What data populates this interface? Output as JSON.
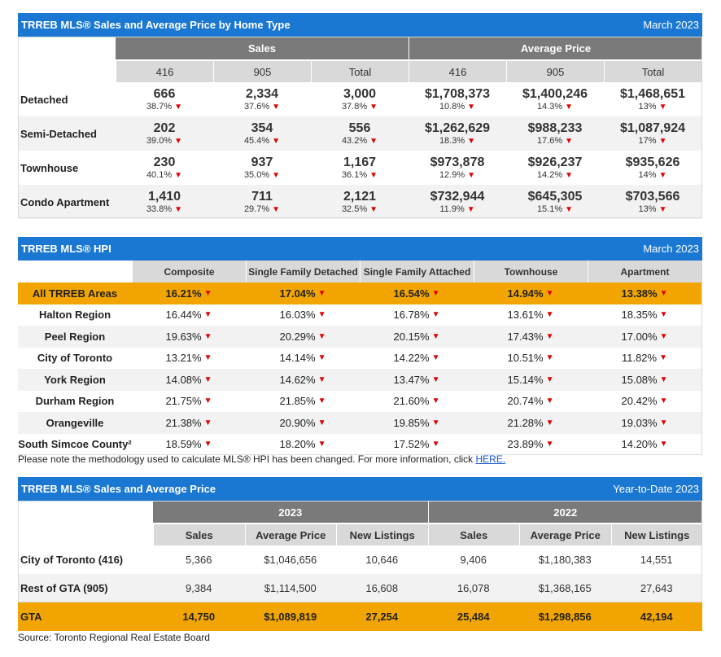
{
  "table1": {
    "title": "TRREB MLS® Sales and Average Price by Home Type",
    "date": "March 2023",
    "groups": [
      "Sales",
      "Average Price"
    ],
    "columns": [
      "416",
      "905",
      "Total",
      "416",
      "905",
      "Total"
    ],
    "rows": [
      {
        "label": "Detached",
        "cells": [
          {
            "v": "666",
            "p": "38.7%"
          },
          {
            "v": "2,334",
            "p": "37.6%"
          },
          {
            "v": "3,000",
            "p": "37.8%"
          },
          {
            "v": "$1,708,373",
            "p": "10.8%"
          },
          {
            "v": "$1,400,246",
            "p": "14.3%"
          },
          {
            "v": "$1,468,651",
            "p": "13%"
          }
        ]
      },
      {
        "label": "Semi-Detached",
        "cells": [
          {
            "v": "202",
            "p": "39.0%"
          },
          {
            "v": "354",
            "p": "45.4%"
          },
          {
            "v": "556",
            "p": "43.2%"
          },
          {
            "v": "$1,262,629",
            "p": "18.3%"
          },
          {
            "v": "$988,233",
            "p": "17.6%"
          },
          {
            "v": "$1,087,924",
            "p": "17%"
          }
        ]
      },
      {
        "label": "Townhouse",
        "cells": [
          {
            "v": "230",
            "p": "40.1%"
          },
          {
            "v": "937",
            "p": "35.0%"
          },
          {
            "v": "1,167",
            "p": "36.1%"
          },
          {
            "v": "$973,878",
            "p": "12.9%"
          },
          {
            "v": "$926,237",
            "p": "14.2%"
          },
          {
            "v": "$935,626",
            "p": "14%"
          }
        ]
      },
      {
        "label": "Condo Apartment",
        "cells": [
          {
            "v": "1,410",
            "p": "33.8%"
          },
          {
            "v": "711",
            "p": "29.7%"
          },
          {
            "v": "2,121",
            "p": "32.5%"
          },
          {
            "v": "$732,944",
            "p": "11.9%"
          },
          {
            "v": "$645,305",
            "p": "15.1%"
          },
          {
            "v": "$703,566",
            "p": "13%"
          }
        ]
      }
    ]
  },
  "table2": {
    "title": "TRREB MLS® HPI",
    "date": "March 2023",
    "columns": [
      "Composite",
      "Single Family Detached",
      "Single Family Attached",
      "Townhouse",
      "Apartment"
    ],
    "rows": [
      {
        "label": "All TRREB Areas",
        "cells": [
          "16.21%",
          "17.04%",
          "16.54%",
          "14.94%",
          "13.38%"
        ]
      },
      {
        "label": "Halton Region",
        "cells": [
          "16.44%",
          "16.03%",
          "16.78%",
          "13.61%",
          "18.35%"
        ]
      },
      {
        "label": "Peel Region",
        "cells": [
          "19.63%",
          "20.29%",
          "20.15%",
          "17.43%",
          "17.00%"
        ]
      },
      {
        "label": "City of Toronto",
        "cells": [
          "13.21%",
          "14.14%",
          "14.22%",
          "10.51%",
          "11.82%"
        ]
      },
      {
        "label": "York Region",
        "cells": [
          "14.08%",
          "14.62%",
          "13.47%",
          "15.14%",
          "15.08%"
        ]
      },
      {
        "label": "Durham Region",
        "cells": [
          "21.75%",
          "21.85%",
          "21.60%",
          "20.74%",
          "20.42%"
        ]
      },
      {
        "label": "Orangeville",
        "cells": [
          "21.38%",
          "20.90%",
          "19.85%",
          "21.28%",
          "19.03%"
        ]
      },
      {
        "label": "South Simcoe County²",
        "cells": [
          "18.59%",
          "18.20%",
          "17.52%",
          "23.89%",
          "14.20%"
        ]
      }
    ]
  },
  "note": {
    "text": "Please note the methodology used to calculate MLS® HPI has been changed. For more information, click ",
    "link": "HERE."
  },
  "table3": {
    "title": "TRREB MLS® Sales and Average Price",
    "date": "Year-to-Date 2023",
    "groups": [
      "2023",
      "2022"
    ],
    "columns": [
      "Sales",
      "Average Price",
      "New Listings",
      "Sales",
      "Average Price",
      "New Listings"
    ],
    "rows": [
      {
        "label": "City of Toronto (416)",
        "cells": [
          "5,366",
          "$1,046,656",
          "10,646",
          "9,406",
          "$1,180,383",
          "14,551"
        ]
      },
      {
        "label": "Rest of GTA (905)",
        "cells": [
          "9,384",
          "$1,114,500",
          "16,608",
          "16,078",
          "$1,368,165",
          "27,643"
        ]
      },
      {
        "label": "GTA",
        "cells": [
          "14,750",
          "$1,089,819",
          "27,254",
          "25,484",
          "$1,298,856",
          "42,194"
        ]
      }
    ]
  },
  "source": "Source: Toronto Regional Real Estate Board",
  "colors": {
    "title_blue": "#1b78d2",
    "header_gray": "#7a7a7a",
    "highlight": "#f2a500",
    "down_arrow": "#e00000"
  },
  "icons": {
    "down": "▼"
  }
}
